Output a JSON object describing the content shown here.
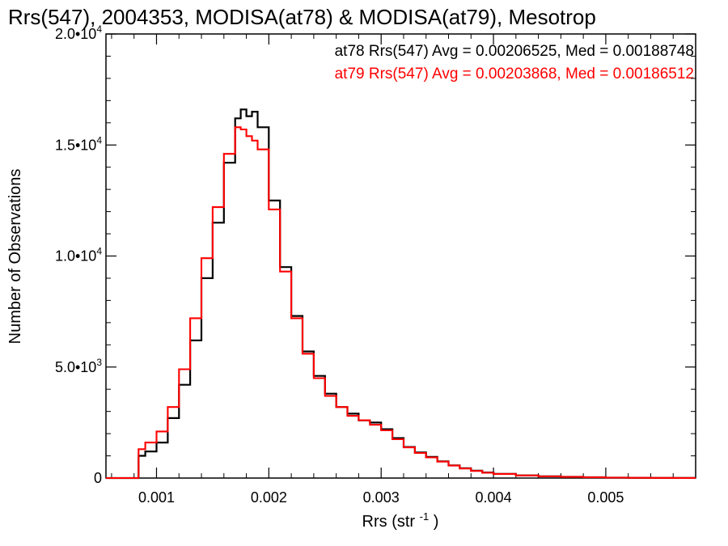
{
  "chart_data": {
    "type": "line",
    "title": "Rrs(547), 2004353, MODISA(at78) & MODISA(at79), Mesotrop",
    "xlabel": "Rrs (str",
    "xlabel_sup": "-1",
    "xlabel_suffix": ")",
    "ylabel": "Number of Observations",
    "xlim": [
      0.00055,
      0.0058
    ],
    "ylim": [
      0,
      20000
    ],
    "x_ticks": [
      {
        "value": 0.001,
        "label": "0.001"
      },
      {
        "value": 0.002,
        "label": "0.002"
      },
      {
        "value": 0.003,
        "label": "0.003"
      },
      {
        "value": 0.004,
        "label": "0.004"
      },
      {
        "value": 0.005,
        "label": "0.005"
      }
    ],
    "y_ticks": [
      {
        "value": 0,
        "label": "0",
        "exp": ""
      },
      {
        "value": 5000,
        "label": "5.0•10",
        "exp": "3"
      },
      {
        "value": 10000,
        "label": "1.0•10",
        "exp": "4"
      },
      {
        "value": 15000,
        "label": "1.5•10",
        "exp": "4"
      },
      {
        "value": 20000,
        "label": "2.0•10",
        "exp": "4"
      }
    ],
    "legend_position": "top-right",
    "grid": false,
    "series": [
      {
        "name": "at78",
        "color": "#000000",
        "legend_text": "at78 Rrs(547) Avg = 0.00206525, Med = 0.00188748",
        "x": [
          0.00055,
          0.00082,
          0.00084,
          0.0009,
          0.001,
          0.0011,
          0.0012,
          0.0013,
          0.0014,
          0.0015,
          0.0016,
          0.0017,
          0.00175,
          0.0018,
          0.00185,
          0.0019,
          0.002,
          0.0021,
          0.0022,
          0.0023,
          0.0024,
          0.0025,
          0.0026,
          0.0027,
          0.0028,
          0.0029,
          0.003,
          0.0031,
          0.0032,
          0.0033,
          0.0034,
          0.0035,
          0.0036,
          0.0037,
          0.0038,
          0.0039,
          0.004,
          0.0042,
          0.0044,
          0.0046,
          0.0048,
          0.005,
          0.0052,
          0.0054,
          0.0056,
          0.0058
        ],
        "y": [
          0,
          0,
          1000,
          1200,
          1600,
          2700,
          4200,
          6200,
          9000,
          11500,
          14200,
          16200,
          16600,
          16300,
          16500,
          15800,
          12500,
          9500,
          7300,
          5700,
          4600,
          3800,
          3200,
          2900,
          2600,
          2500,
          2200,
          1800,
          1400,
          1150,
          950,
          750,
          570,
          440,
          330,
          250,
          190,
          120,
          80,
          55,
          35,
          20,
          12,
          8,
          5,
          3
        ]
      },
      {
        "name": "at79",
        "color": "#ff0000",
        "legend_text": "at79 Rrs(547) Avg = 0.00203868, Med = 0.00186512",
        "x": [
          0.00055,
          0.00082,
          0.00084,
          0.0009,
          0.001,
          0.0011,
          0.0012,
          0.0013,
          0.0014,
          0.0015,
          0.0016,
          0.0017,
          0.00175,
          0.0018,
          0.00185,
          0.0019,
          0.002,
          0.0021,
          0.0022,
          0.0023,
          0.0024,
          0.0025,
          0.0026,
          0.0027,
          0.0028,
          0.0029,
          0.003,
          0.0031,
          0.0032,
          0.0033,
          0.0034,
          0.0035,
          0.0036,
          0.0037,
          0.0038,
          0.0039,
          0.004,
          0.0042,
          0.0044,
          0.0046,
          0.0048,
          0.005,
          0.0052,
          0.0054,
          0.0056,
          0.0058
        ],
        "y": [
          0,
          0,
          1300,
          1600,
          2100,
          3200,
          4900,
          7200,
          9900,
          12200,
          14600,
          15800,
          15700,
          15400,
          15200,
          14800,
          12100,
          9300,
          7200,
          5600,
          4500,
          3700,
          3200,
          2800,
          2600,
          2400,
          2150,
          1750,
          1380,
          1130,
          930,
          740,
          560,
          430,
          320,
          240,
          185,
          118,
          78,
          52,
          34,
          19,
          11,
          7,
          4,
          2
        ]
      }
    ]
  }
}
